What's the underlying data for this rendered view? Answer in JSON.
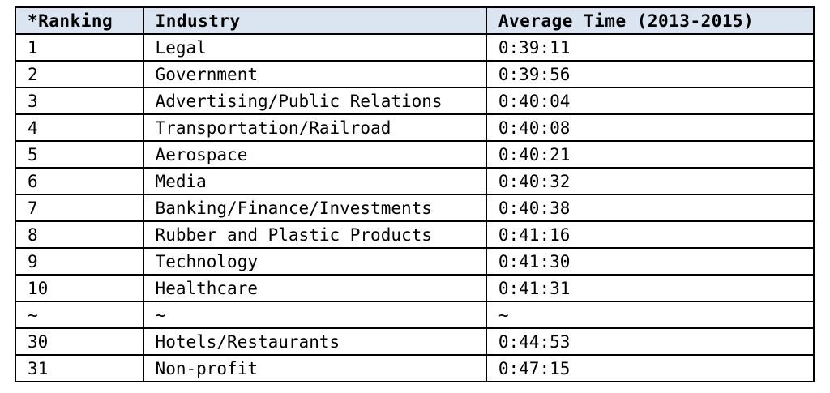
{
  "table": {
    "header": [
      "*Ranking",
      "Industry",
      "Average Time (2013-2015)"
    ],
    "rows": [
      [
        "1",
        "Legal",
        "0:39:11"
      ],
      [
        "2",
        "Government",
        "0:39:56"
      ],
      [
        "3",
        "Advertising/Public Relations",
        "0:40:04"
      ],
      [
        "4",
        "Transportation/Railroad",
        "0:40:08"
      ],
      [
        "5",
        "Aerospace",
        "0:40:21"
      ],
      [
        "6",
        "Media",
        "0:40:32"
      ],
      [
        "7",
        "Banking/Finance/Investments",
        "0:40:38"
      ],
      [
        "8",
        "Rubber and Plastic Products",
        "0:41:16"
      ],
      [
        "9",
        "Technology",
        "0:41:30"
      ],
      [
        "10",
        "Healthcare",
        "0:41:31"
      ],
      [
        "~",
        "~",
        "~"
      ],
      [
        "30",
        "Hotels/Restaurants",
        "0:44:53"
      ],
      [
        "31",
        "Non-profit",
        "0:47:15"
      ]
    ]
  }
}
